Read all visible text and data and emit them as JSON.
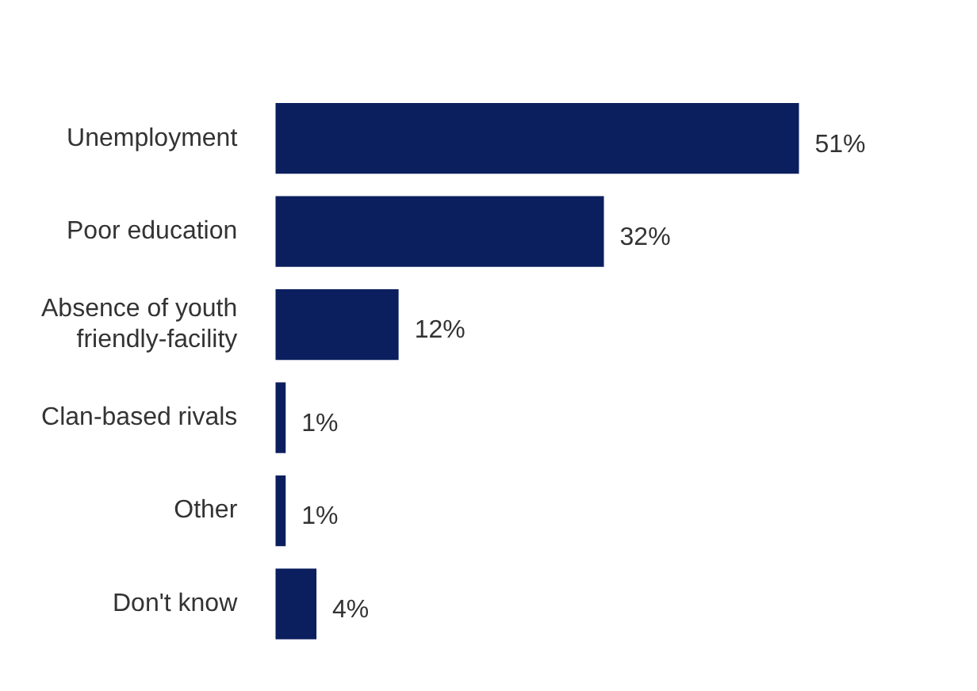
{
  "chart_data": {
    "type": "bar",
    "orientation": "horizontal",
    "categories": [
      "Unemployment",
      "Poor education",
      "Absence of youth friendly-facility",
      "Clan-based rivals",
      "Other",
      "Don't know"
    ],
    "values": [
      51,
      32,
      12,
      1,
      1,
      4
    ],
    "color": "#0b1f5e",
    "value_labels": [
      "51%",
      "32%",
      "12%",
      "1%",
      "1%",
      "4%"
    ]
  }
}
